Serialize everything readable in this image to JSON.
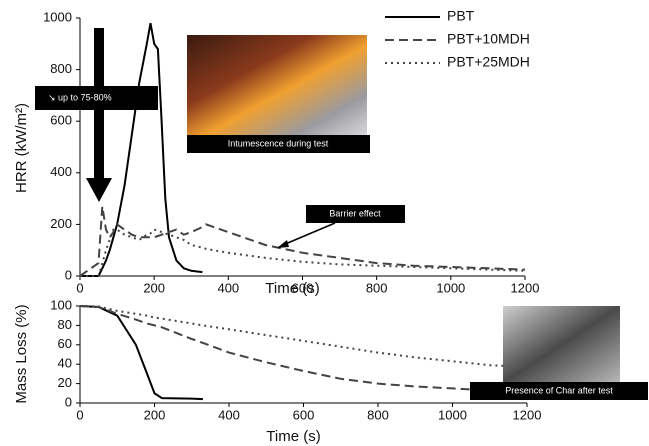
{
  "chart_data": [
    {
      "type": "line",
      "xlabel": "Time (s)",
      "ylabel": "HRR (kW/m²)",
      "x": [
        0,
        50,
        60,
        70,
        80,
        90,
        100,
        120,
        140,
        160,
        180,
        190,
        200,
        210,
        220,
        230,
        240,
        260,
        280,
        300,
        330,
        340,
        400,
        500,
        600,
        700,
        800,
        900,
        1000,
        1100,
        1200
      ],
      "series": [
        {
          "name": "PBT",
          "color": "#000000",
          "style": "solid",
          "values": [
            0,
            0,
            30,
            60,
            100,
            150,
            200,
            350,
            550,
            750,
            900,
            980,
            900,
            880,
            600,
            300,
            150,
            60,
            30,
            20,
            15,
            null,
            null,
            null,
            null,
            null,
            null,
            null,
            null,
            null,
            null
          ]
        },
        {
          "name": "PBT+10MDH",
          "color": "#444444",
          "style": "dash",
          "values": [
            0,
            50,
            270,
            180,
            150,
            170,
            200,
            180,
            160,
            150,
            150,
            150,
            150,
            155,
            160,
            165,
            170,
            180,
            160,
            170,
            190,
            200,
            170,
            120,
            90,
            70,
            50,
            40,
            35,
            30,
            25
          ]
        },
        {
          "name": "PBT+25MDH",
          "color": "#444444",
          "style": "dot",
          "values": [
            0,
            0,
            50,
            100,
            140,
            180,
            180,
            160,
            150,
            140,
            160,
            165,
            180,
            175,
            170,
            165,
            160,
            150,
            140,
            120,
            110,
            105,
            90,
            70,
            55,
            45,
            40,
            35,
            30,
            25,
            20
          ]
        }
      ],
      "xlim": [
        0,
        1200
      ],
      "xticks": [
        0,
        200,
        400,
        600,
        800,
        1000,
        1200
      ],
      "ylim": [
        0,
        1000
      ],
      "yticks": [
        0,
        200,
        400,
        600,
        800,
        1000
      ],
      "legend": "upper right",
      "annotations": [
        "↘ up to 75-80%",
        "Intumescence during test",
        "Barrier effect"
      ]
    },
    {
      "type": "line",
      "xlabel": "Time (s)",
      "ylabel": "Mass Loss (%)",
      "x": [
        0,
        50,
        100,
        150,
        180,
        200,
        220,
        300,
        330,
        400,
        500,
        600,
        700,
        800,
        900,
        1000,
        1050,
        1100,
        1150
      ],
      "series": [
        {
          "color": "#000000",
          "style": "solid",
          "values": [
            100,
            99,
            90,
            60,
            30,
            10,
            5,
            4.5,
            4,
            null,
            null,
            null,
            null,
            null,
            null,
            null,
            null,
            null,
            null
          ]
        },
        {
          "color": "#444444",
          "style": "dash",
          "values": [
            100,
            99,
            92,
            86,
            82,
            80,
            78,
            66,
            62,
            52,
            42,
            33,
            25,
            20,
            17,
            15,
            14,
            null,
            null
          ]
        },
        {
          "color": "#444444",
          "style": "dot",
          "values": [
            100,
            99.5,
            95,
            92,
            90,
            88,
            87,
            82,
            80,
            76,
            70,
            64,
            58,
            52,
            47,
            43,
            41,
            39,
            38
          ]
        }
      ],
      "xlim": [
        0,
        1200
      ],
      "xticks": [
        0,
        200,
        400,
        600,
        800,
        1000,
        1200
      ],
      "ylim": [
        0,
        100
      ],
      "yticks": [
        0,
        20,
        40,
        60,
        80,
        100
      ],
      "annotations": [
        "Presence of Char after test"
      ]
    }
  ]
}
